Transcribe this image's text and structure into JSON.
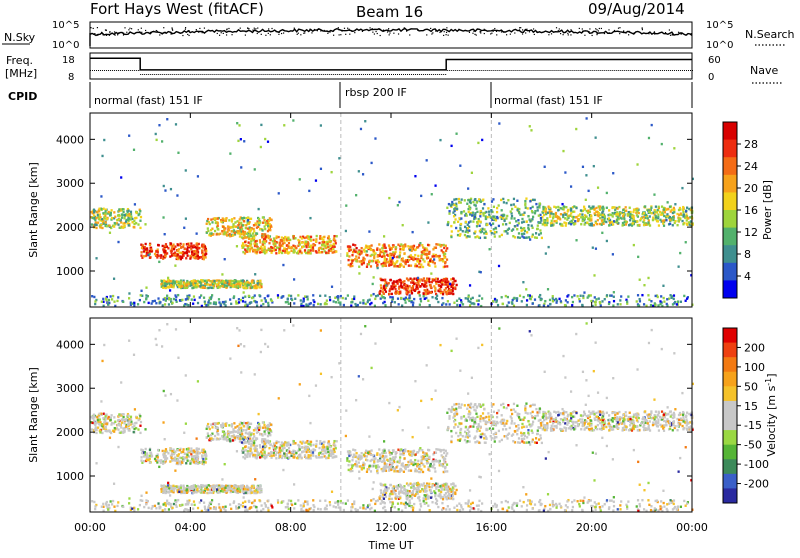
{
  "header": {
    "station": "Fort Hays West (fitACF)",
    "beam": "Beam 16",
    "date": "09/Aug/2014"
  },
  "noise_panel": {
    "left_label": "N.Sky",
    "right_label": "N.Search",
    "left_ticks": [
      "10^5",
      "10^0"
    ],
    "right_ticks": [
      "10^5",
      "10^0"
    ]
  },
  "freq_panel": {
    "left_label_1": "Freq.",
    "left_label_2": "[MHz]",
    "right_label": "Nave",
    "left_ticks": [
      "18",
      "8"
    ],
    "right_ticks": [
      "60",
      "0"
    ],
    "freq_steps": [
      {
        "from_hour": 0.0,
        "to_hour": 2.0,
        "value": 16.0
      },
      {
        "from_hour": 2.0,
        "to_hour": 14.2,
        "value": 11.5
      },
      {
        "from_hour": 14.2,
        "to_hour": 24.0,
        "value": 15.5
      }
    ]
  },
  "cpid_panel": {
    "label": "CPID",
    "segments": [
      {
        "start": 0,
        "end": 10,
        "text": "normal (fast) 151 IF"
      },
      {
        "start": 10,
        "end": 16,
        "text": "rbsp 200 IF"
      },
      {
        "start": 16,
        "end": 24,
        "text": "normal (fast) 151 IF"
      }
    ]
  },
  "chart_data": [
    {
      "type": "heatmap",
      "title": "Power",
      "ylabel": "Slant Range [km]",
      "xlabel": "Time UT",
      "xlim_hours": [
        0,
        24
      ],
      "ylim": [
        180,
        4600
      ],
      "yticks": [
        1000,
        2000,
        3000,
        4000
      ],
      "xtick_labels": [
        "00:00",
        "04:00",
        "08:00",
        "12:00",
        "16:00",
        "20:00",
        "00:00"
      ],
      "colorbar": {
        "label": "Power [dB]",
        "ticks": [
          "4",
          "8",
          "12",
          "16",
          "20",
          "24",
          "28"
        ],
        "colors": [
          "#0000ee",
          "#2b58c8",
          "#3f8f8f",
          "#52b16c",
          "#9ed43c",
          "#f2d21b",
          "#f7a21b",
          "#f46c16",
          "#ee2d10",
          "#d80000"
        ]
      },
      "echo_regions": [
        {
          "t0": 0.0,
          "t1": 2.0,
          "r_center": 2200,
          "r_half": 220,
          "level": 0.45
        },
        {
          "t0": 2.0,
          "t1": 4.6,
          "r_center": 1450,
          "r_half": 180,
          "level": 0.85
        },
        {
          "t0": 4.6,
          "t1": 7.2,
          "r_center": 2000,
          "r_half": 220,
          "level": 0.55
        },
        {
          "t0": 2.8,
          "t1": 6.8,
          "r_center": 700,
          "r_half": 90,
          "level": 0.5
        },
        {
          "t0": 6.0,
          "t1": 9.8,
          "r_center": 1600,
          "r_half": 200,
          "level": 0.65
        },
        {
          "t0": 10.2,
          "t1": 14.2,
          "r_center": 1350,
          "r_half": 260,
          "level": 0.7
        },
        {
          "t0": 11.5,
          "t1": 14.6,
          "r_center": 650,
          "r_half": 180,
          "level": 0.9
        },
        {
          "t0": 14.2,
          "t1": 18.0,
          "r_center": 2200,
          "r_half": 450,
          "level": 0.35
        },
        {
          "t0": 18.0,
          "t1": 24.0,
          "r_center": 2250,
          "r_half": 220,
          "level": 0.45
        }
      ]
    },
    {
      "type": "heatmap",
      "title": "Velocity",
      "ylabel": "Slant Range [km]",
      "xlabel": "Time UT",
      "xlim_hours": [
        0,
        24
      ],
      "ylim": [
        180,
        4600
      ],
      "yticks": [
        1000,
        2000,
        3000,
        4000
      ],
      "xtick_labels": [
        "00:00",
        "04:00",
        "08:00",
        "12:00",
        "16:00",
        "20:00",
        "00:00"
      ],
      "colorbar": {
        "label": "Velocity [m s-1]",
        "ticks": [
          "200",
          "100",
          "50",
          "15",
          "-15",
          "-50",
          "-100",
          "-200"
        ],
        "colors": [
          "#2a2aa0",
          "#3a5fc8",
          "#3c8a5a",
          "#55b536",
          "#9ad843",
          "#c8c8c8",
          "#c8c8c8",
          "#f5c22a",
          "#f6a21b",
          "#f37a12",
          "#ee4010",
          "#e00000"
        ]
      }
    }
  ]
}
